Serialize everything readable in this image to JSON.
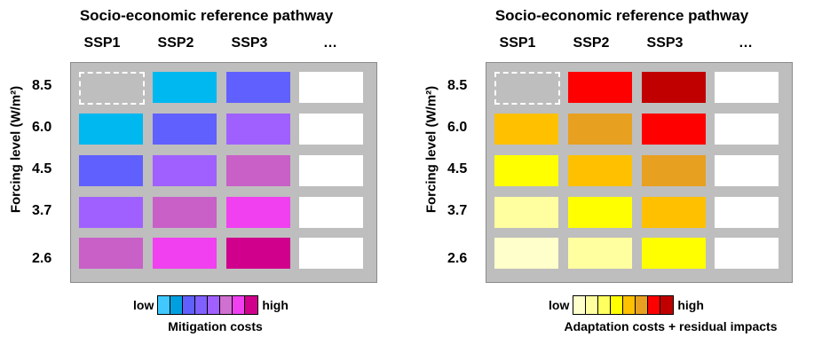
{
  "panels": [
    {
      "title": "Socio-economic reference pathway",
      "columns": [
        "SSP1",
        "SSP2",
        "SSP3",
        "…"
      ],
      "ylabel": "Forcing level (W/m²)",
      "rows": [
        "8.5",
        "6.0",
        "4.5",
        "3.7",
        "2.6"
      ],
      "cells": [
        [
          "",
          "#00b8f0",
          "#6060ff",
          "#ffffff"
        ],
        [
          "#00b8f0",
          "#6060ff",
          "#a060ff",
          "#ffffff"
        ],
        [
          "#6060ff",
          "#a060ff",
          "#c860c8",
          "#ffffff"
        ],
        [
          "#a060ff",
          "#c860c8",
          "#f040f0",
          "#ffffff"
        ],
        [
          "#c860c8",
          "#f040f0",
          "#d0008c",
          "#ffffff"
        ]
      ],
      "legend": {
        "low": "low",
        "high": "high",
        "colors": [
          "#40c8ff",
          "#00a0e0",
          "#6060ff",
          "#8060ff",
          "#a060ff",
          "#d070d0",
          "#f040f0",
          "#d0008c"
        ],
        "caption": "Mitigation costs"
      }
    },
    {
      "title": "Socio-economic reference pathway",
      "columns": [
        "SSP1",
        "SSP2",
        "SSP3",
        "…"
      ],
      "ylabel": "Forcing level (W/m²)",
      "rows": [
        "8.5",
        "6.0",
        "4.5",
        "3.7",
        "2.6"
      ],
      "cells": [
        [
          "",
          "#ff0000",
          "#c00000",
          "#ffffff"
        ],
        [
          "#ffc000",
          "#e8a020",
          "#ff0000",
          "#ffffff"
        ],
        [
          "#ffff00",
          "#ffc000",
          "#e8a020",
          "#ffffff"
        ],
        [
          "#ffffa0",
          "#ffff00",
          "#ffc000",
          "#ffffff"
        ],
        [
          "#ffffcc",
          "#ffffa0",
          "#ffff00",
          "#ffffff"
        ]
      ],
      "legend": {
        "low": "low",
        "high": "high",
        "colors": [
          "#ffffcc",
          "#ffffa0",
          "#ffff60",
          "#ffff00",
          "#ffc000",
          "#e8a020",
          "#ff0000",
          "#c00000"
        ],
        "caption": "Adaptation costs + residual impacts"
      }
    }
  ]
}
